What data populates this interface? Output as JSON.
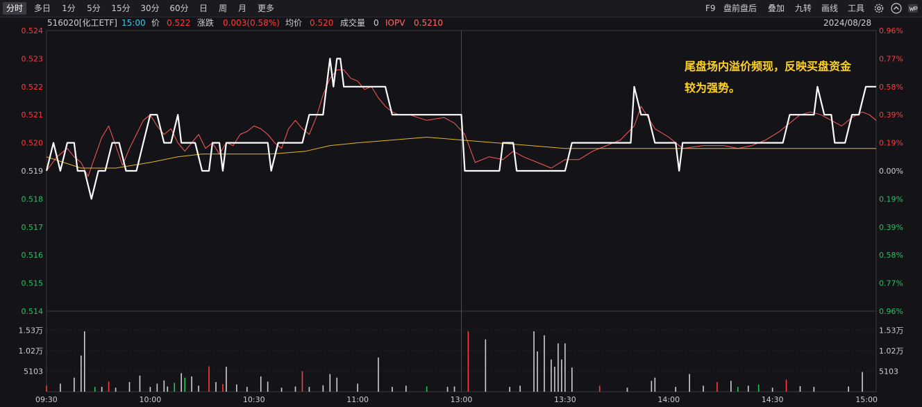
{
  "toolbar": {
    "tabs": [
      "分时",
      "多日",
      "1分",
      "5分",
      "15分",
      "30分",
      "60分",
      "日",
      "周",
      "月",
      "更多"
    ],
    "active_tab": "分时",
    "right_tools": [
      "F9",
      "盘前盘后",
      "叠加",
      "九转",
      "画线",
      "工具"
    ]
  },
  "info": {
    "code_name": "516020[化工ETF]",
    "time": "15:00",
    "price_label": "价",
    "price": "0.522",
    "change_label": "涨跌",
    "change": "0.003(0.58%)",
    "avg_label": "均价",
    "avg": "0.520",
    "volume_label": "成交量",
    "volume": "0",
    "iopv_label": "IOPV",
    "iopv": "0.5210",
    "date": "2024/08/28"
  },
  "annotation": {
    "line1": "尾盘场内溢价频现，反映买盘资金",
    "line2": "较为强势。"
  },
  "colors": {
    "up": "#ff3b3b",
    "down": "#22c55e",
    "flat": "#d0d0d0",
    "price_line": "#ffffff",
    "iopv_line": "#ff5a5a",
    "avg_line": "#e8b820",
    "annotation": "#ffd21f"
  },
  "chart_data": {
    "type": "line",
    "x_ticks": [
      "09:30",
      "10:00",
      "10:30",
      "11:00",
      "13:00",
      "13:30",
      "14:00",
      "14:30",
      "15:00"
    ],
    "y_left_ticks": [
      "0.524",
      "0.523",
      "0.522",
      "0.521",
      "0.520",
      "0.519",
      "0.518",
      "0.517",
      "0.516",
      "0.515",
      "0.514"
    ],
    "y_right_ticks": [
      "0.96%",
      "0.77%",
      "0.58%",
      "0.39%",
      "0.19%",
      "0.00%",
      "0.19%",
      "0.39%",
      "0.58%",
      "0.77%",
      "0.96%"
    ],
    "y_range": [
      0.514,
      0.524
    ],
    "base_price": 0.519,
    "volume_ticks": [
      "1.53万",
      "1.02万",
      "5103"
    ],
    "volume_max": 20000,
    "series": [
      {
        "points": [
          [
            0,
            0.519
          ],
          [
            2,
            0.52
          ],
          [
            4,
            0.519
          ],
          [
            6,
            0.52
          ],
          [
            8,
            0.52
          ],
          [
            9,
            0.519
          ],
          [
            11,
            0.519
          ],
          [
            13,
            0.518
          ],
          [
            15,
            0.519
          ],
          [
            17,
            0.519
          ],
          [
            19,
            0.52
          ],
          [
            21,
            0.52
          ],
          [
            23,
            0.519
          ],
          [
            26,
            0.519
          ],
          [
            28,
            0.52
          ],
          [
            30,
            0.521
          ],
          [
            32,
            0.521
          ],
          [
            34,
            0.52
          ],
          [
            36,
            0.52
          ],
          [
            38,
            0.521
          ],
          [
            39,
            0.52
          ],
          [
            41,
            0.52
          ],
          [
            43,
            0.52
          ],
          [
            45,
            0.519
          ],
          [
            47,
            0.519
          ],
          [
            48,
            0.52
          ],
          [
            50,
            0.52
          ],
          [
            51,
            0.519
          ],
          [
            52,
            0.52
          ],
          [
            64,
            0.52
          ],
          [
            65,
            0.519
          ],
          [
            67,
            0.52
          ],
          [
            74,
            0.52
          ],
          [
            76,
            0.521
          ],
          [
            80,
            0.521
          ],
          [
            81,
            0.522
          ],
          [
            82,
            0.523
          ],
          [
            83,
            0.522
          ],
          [
            84,
            0.523
          ],
          [
            85,
            0.523
          ],
          [
            86,
            0.522
          ],
          [
            98,
            0.522
          ],
          [
            100,
            0.521
          ],
          [
            120,
            0.521
          ],
          [
            121,
            0.519
          ],
          [
            131,
            0.519
          ],
          [
            132,
            0.52
          ],
          [
            135,
            0.52
          ],
          [
            136,
            0.519
          ],
          [
            150,
            0.519
          ],
          [
            152,
            0.52
          ],
          [
            169,
            0.52
          ],
          [
            170,
            0.522
          ],
          [
            172,
            0.521
          ],
          [
            174,
            0.521
          ],
          [
            176,
            0.52
          ],
          [
            182,
            0.52
          ],
          [
            183,
            0.519
          ],
          [
            184,
            0.52
          ],
          [
            213,
            0.52
          ],
          [
            215,
            0.521
          ],
          [
            222,
            0.521
          ],
          [
            223,
            0.522
          ],
          [
            225,
            0.521
          ],
          [
            227,
            0.521
          ],
          [
            228,
            0.52
          ],
          [
            231,
            0.52
          ],
          [
            233,
            0.521
          ],
          [
            235,
            0.521
          ],
          [
            237,
            0.522
          ],
          [
            240,
            0.522
          ]
        ]
      },
      {
        "points": [
          [
            0,
            0.519
          ],
          [
            3,
            0.5195
          ],
          [
            6,
            0.5198
          ],
          [
            8,
            0.5195
          ],
          [
            10,
            0.5193
          ],
          [
            12,
            0.5188
          ],
          [
            14,
            0.5195
          ],
          [
            16,
            0.5202
          ],
          [
            18,
            0.5206
          ],
          [
            20,
            0.5199
          ],
          [
            22,
            0.5192
          ],
          [
            24,
            0.5198
          ],
          [
            26,
            0.5203
          ],
          [
            28,
            0.5208
          ],
          [
            30,
            0.521
          ],
          [
            32,
            0.5206
          ],
          [
            34,
            0.5203
          ],
          [
            36,
            0.5205
          ],
          [
            38,
            0.52
          ],
          [
            40,
            0.5197
          ],
          [
            42,
            0.52
          ],
          [
            44,
            0.5203
          ],
          [
            46,
            0.5198
          ],
          [
            48,
            0.52
          ],
          [
            50,
            0.5196
          ],
          [
            52,
            0.52
          ],
          [
            54,
            0.5199
          ],
          [
            56,
            0.5203
          ],
          [
            58,
            0.5204
          ],
          [
            60,
            0.5206
          ],
          [
            62,
            0.5205
          ],
          [
            64,
            0.5203
          ],
          [
            66,
            0.52
          ],
          [
            68,
            0.5198
          ],
          [
            70,
            0.5205
          ],
          [
            72,
            0.5208
          ],
          [
            74,
            0.5205
          ],
          [
            76,
            0.5203
          ],
          [
            78,
            0.5209
          ],
          [
            80,
            0.5217
          ],
          [
            82,
            0.5223
          ],
          [
            84,
            0.5226
          ],
          [
            86,
            0.5226
          ],
          [
            88,
            0.5223
          ],
          [
            90,
            0.5222
          ],
          [
            92,
            0.5219
          ],
          [
            94,
            0.522
          ],
          [
            96,
            0.5216
          ],
          [
            98,
            0.5213
          ],
          [
            100,
            0.5211
          ],
          [
            102,
            0.521
          ],
          [
            105,
            0.521
          ],
          [
            110,
            0.5208
          ],
          [
            115,
            0.5209
          ],
          [
            118,
            0.5207
          ],
          [
            121,
            0.5203
          ],
          [
            124,
            0.5193
          ],
          [
            128,
            0.5195
          ],
          [
            132,
            0.5194
          ],
          [
            135,
            0.5197
          ],
          [
            138,
            0.5195
          ],
          [
            142,
            0.5193
          ],
          [
            146,
            0.5191
          ],
          [
            150,
            0.5194
          ],
          [
            154,
            0.5194
          ],
          [
            158,
            0.5197
          ],
          [
            162,
            0.5199
          ],
          [
            166,
            0.5201
          ],
          [
            170,
            0.5206
          ],
          [
            172,
            0.5213
          ],
          [
            174,
            0.5209
          ],
          [
            176,
            0.5205
          ],
          [
            180,
            0.5202
          ],
          [
            184,
            0.5198
          ],
          [
            190,
            0.5199
          ],
          [
            196,
            0.5199
          ],
          [
            200,
            0.5198
          ],
          [
            204,
            0.5199
          ],
          [
            208,
            0.5201
          ],
          [
            212,
            0.5204
          ],
          [
            215,
            0.5207
          ],
          [
            218,
            0.521
          ],
          [
            221,
            0.5211
          ],
          [
            224,
            0.521
          ],
          [
            227,
            0.5208
          ],
          [
            230,
            0.5206
          ],
          [
            233,
            0.5209
          ],
          [
            236,
            0.5211
          ],
          [
            238,
            0.521
          ],
          [
            240,
            0.5208
          ]
        ]
      },
      {
        "points": [
          [
            0,
            0.5195
          ],
          [
            10,
            0.5191
          ],
          [
            20,
            0.5191
          ],
          [
            30,
            0.5193
          ],
          [
            38,
            0.5195
          ],
          [
            45,
            0.5196
          ],
          [
            55,
            0.5196
          ],
          [
            65,
            0.5196
          ],
          [
            75,
            0.5197
          ],
          [
            82,
            0.5199
          ],
          [
            90,
            0.52
          ],
          [
            100,
            0.5201
          ],
          [
            110,
            0.5202
          ],
          [
            120,
            0.5201
          ],
          [
            130,
            0.52
          ],
          [
            140,
            0.5199
          ],
          [
            150,
            0.5198
          ],
          [
            160,
            0.5198
          ],
          [
            170,
            0.5198
          ],
          [
            180,
            0.5198
          ],
          [
            190,
            0.5198
          ],
          [
            200,
            0.5198
          ],
          [
            210,
            0.5198
          ],
          [
            220,
            0.5198
          ],
          [
            230,
            0.5198
          ],
          [
            240,
            0.5198
          ]
        ]
      }
    ],
    "volume": [
      [
        0,
        1500,
        "u"
      ],
      [
        4,
        2000,
        "f"
      ],
      [
        8,
        3500,
        "f"
      ],
      [
        10,
        9000,
        "f"
      ],
      [
        11,
        15000,
        "f"
      ],
      [
        14,
        1200,
        "d"
      ],
      [
        16,
        1200,
        "f"
      ],
      [
        18,
        2500,
        "u"
      ],
      [
        20,
        1000,
        "f"
      ],
      [
        24,
        2400,
        "f"
      ],
      [
        27,
        4000,
        "f"
      ],
      [
        30,
        1200,
        "f"
      ],
      [
        32,
        2000,
        "f"
      ],
      [
        34,
        2800,
        "f"
      ],
      [
        35,
        1300,
        "f"
      ],
      [
        37,
        2200,
        "d"
      ],
      [
        39,
        4600,
        "f"
      ],
      [
        40,
        3500,
        "d"
      ],
      [
        42,
        3800,
        "f"
      ],
      [
        44,
        1500,
        "f"
      ],
      [
        47,
        6300,
        "u"
      ],
      [
        49,
        2400,
        "f"
      ],
      [
        51,
        1900,
        "u"
      ],
      [
        52,
        6200,
        "f"
      ],
      [
        55,
        1800,
        "f"
      ],
      [
        58,
        1200,
        "f"
      ],
      [
        62,
        3800,
        "f"
      ],
      [
        64,
        2500,
        "f"
      ],
      [
        68,
        1000,
        "f"
      ],
      [
        72,
        1300,
        "f"
      ],
      [
        74,
        5100,
        "u"
      ],
      [
        76,
        1200,
        "f"
      ],
      [
        80,
        1600,
        "f"
      ],
      [
        82,
        4400,
        "f"
      ],
      [
        84,
        3500,
        "f"
      ],
      [
        90,
        2000,
        "f"
      ],
      [
        96,
        8500,
        "f"
      ],
      [
        100,
        1200,
        "f"
      ],
      [
        104,
        1500,
        "f"
      ],
      [
        110,
        1300,
        "d"
      ],
      [
        116,
        1200,
        "f"
      ],
      [
        118,
        1300,
        "f"
      ],
      [
        122,
        15000,
        "u"
      ],
      [
        127,
        13000,
        "f"
      ],
      [
        134,
        1200,
        "f"
      ],
      [
        137,
        1500,
        "f"
      ],
      [
        141,
        15000,
        "f"
      ],
      [
        142,
        10000,
        "f"
      ],
      [
        144,
        14000,
        "f"
      ],
      [
        146,
        8000,
        "f"
      ],
      [
        147,
        6200,
        "f"
      ],
      [
        148,
        12000,
        "f"
      ],
      [
        149,
        8000,
        "f"
      ],
      [
        150,
        12000,
        "f"
      ],
      [
        152,
        6000,
        "f"
      ],
      [
        160,
        1500,
        "u"
      ],
      [
        168,
        1000,
        "f"
      ],
      [
        175,
        2700,
        "f"
      ],
      [
        176,
        3500,
        "f"
      ],
      [
        182,
        1200,
        "f"
      ],
      [
        186,
        4400,
        "f"
      ],
      [
        190,
        1500,
        "f"
      ],
      [
        194,
        2400,
        "u"
      ],
      [
        198,
        2700,
        "f"
      ],
      [
        200,
        1200,
        "d"
      ],
      [
        203,
        1500,
        "f"
      ],
      [
        206,
        1800,
        "d"
      ],
      [
        210,
        1000,
        "f"
      ],
      [
        214,
        3000,
        "u"
      ],
      [
        218,
        1400,
        "f"
      ],
      [
        222,
        1200,
        "f"
      ],
      [
        232,
        1300,
        "f"
      ],
      [
        236,
        4900,
        "f"
      ]
    ]
  }
}
